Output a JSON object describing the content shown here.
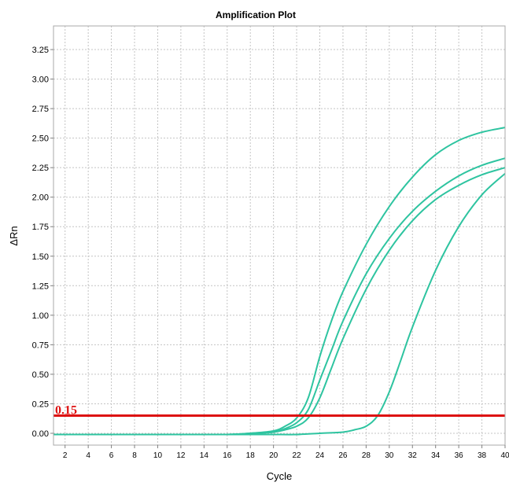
{
  "chart_data": {
    "type": "line",
    "title": "Amplification Plot",
    "xlabel": "Cycle",
    "ylabel": "ΔRn",
    "xlim": [
      1,
      40
    ],
    "ylim": [
      -0.1,
      3.45
    ],
    "x_ticks": [
      2,
      4,
      6,
      8,
      10,
      12,
      14,
      16,
      18,
      20,
      22,
      24,
      26,
      28,
      30,
      32,
      34,
      36,
      38,
      40
    ],
    "y_ticks": [
      0.0,
      0.25,
      0.5,
      0.75,
      1.0,
      1.25,
      1.5,
      1.75,
      2.0,
      2.25,
      2.5,
      2.75,
      3.0,
      3.25
    ],
    "grid": true,
    "threshold": {
      "value": 0.15,
      "label": "0.15",
      "color": "#dd1111"
    },
    "series_color": "#2ec4a0",
    "series": [
      {
        "x": [
          1,
          10,
          16,
          18,
          20,
          21,
          22,
          23,
          24,
          25,
          26,
          28,
          30,
          32,
          34,
          36,
          38,
          40
        ],
        "values": [
          -0.01,
          -0.01,
          -0.01,
          0.0,
          0.02,
          0.06,
          0.13,
          0.3,
          0.65,
          0.95,
          1.2,
          1.6,
          1.92,
          2.17,
          2.36,
          2.48,
          2.55,
          2.59
        ]
      },
      {
        "x": [
          1,
          10,
          16,
          18,
          20,
          21,
          22,
          23,
          24,
          25,
          26,
          28,
          30,
          32,
          34,
          36,
          38,
          40
        ],
        "values": [
          -0.01,
          -0.01,
          -0.01,
          0.0,
          0.01,
          0.04,
          0.09,
          0.2,
          0.45,
          0.7,
          0.95,
          1.35,
          1.65,
          1.88,
          2.05,
          2.18,
          2.27,
          2.33
        ]
      },
      {
        "x": [
          1,
          10,
          16,
          18,
          20,
          21,
          22,
          23,
          24,
          25,
          26,
          28,
          30,
          32,
          34,
          36,
          38,
          40
        ],
        "values": [
          -0.01,
          -0.01,
          -0.01,
          0.0,
          0.01,
          0.03,
          0.06,
          0.13,
          0.3,
          0.55,
          0.8,
          1.22,
          1.55,
          1.8,
          1.98,
          2.1,
          2.19,
          2.25
        ]
      },
      {
        "x": [
          1,
          10,
          16,
          18,
          20,
          22,
          24,
          26,
          27,
          28,
          29,
          30,
          31,
          32,
          34,
          36,
          38,
          40
        ],
        "values": [
          -0.01,
          -0.01,
          -0.01,
          -0.01,
          -0.01,
          -0.01,
          0.0,
          0.01,
          0.03,
          0.06,
          0.15,
          0.35,
          0.62,
          0.9,
          1.38,
          1.75,
          2.02,
          2.2
        ]
      }
    ]
  }
}
